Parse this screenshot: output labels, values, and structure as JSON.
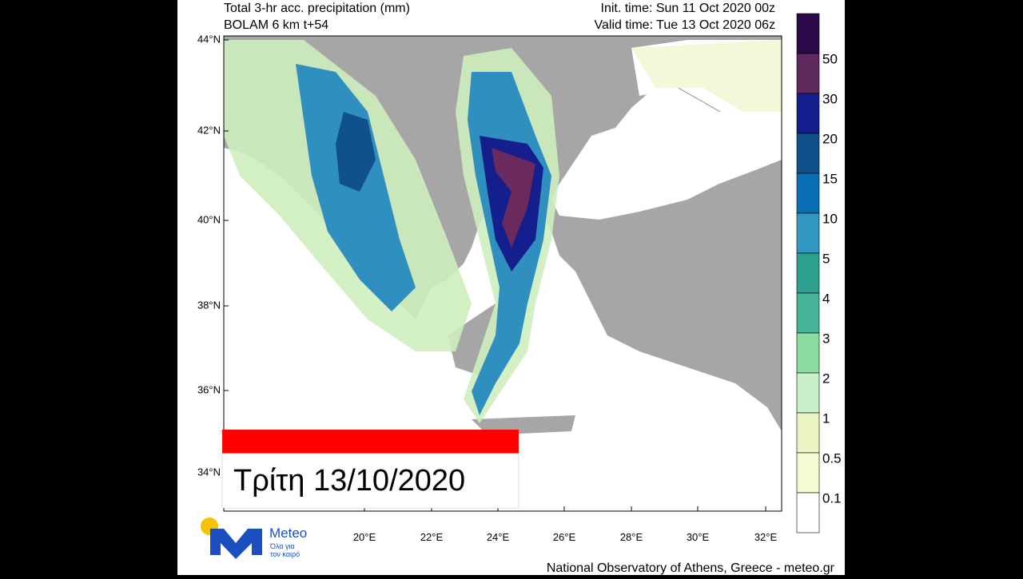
{
  "header": {
    "title": "Total 3-hr acc. precipitation (mm)",
    "model": "BOLAM 6 km t+54",
    "init_time": "Init. time: Sun 11 Oct 2020 00z",
    "valid_time": "Valid time: Tue 13 Oct 2020 06z"
  },
  "map": {
    "lat_labels": [
      "44°N",
      "42°N",
      "40°N",
      "38°N",
      "36°N",
      "34°N"
    ],
    "lon_labels": [
      "20°E",
      "22°E",
      "24°E",
      "26°E",
      "28°E",
      "30°E",
      "32°E"
    ]
  },
  "colorbar": {
    "labels": [
      "50",
      "30",
      "20",
      "15",
      "10",
      "5",
      "4",
      "3",
      "2",
      "1",
      "0.5",
      "0.1"
    ]
  },
  "banner": {
    "date": "Τρίτη 13/10/2020"
  },
  "logo": {
    "name": "Meteo",
    "tagline_1": "Όλα για",
    "tagline_2": "τον καιρό"
  },
  "footer": {
    "credit": "National Observatory of Athens, Greece - meteo.gr"
  }
}
